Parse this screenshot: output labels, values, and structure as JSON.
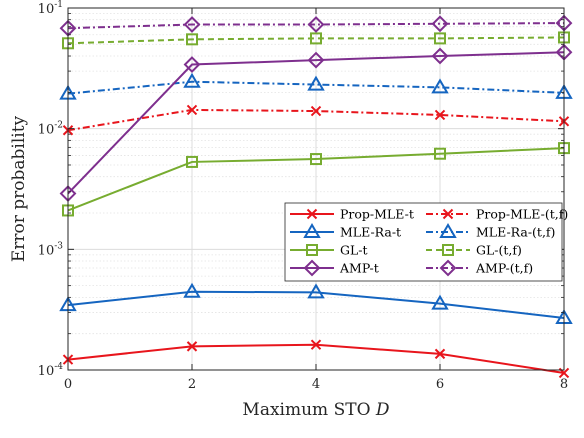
{
  "chart_data": {
    "type": "line",
    "title": "",
    "xlabel": "Maximum STO",
    "xlabel_var": "D",
    "ylabel": "Error probability",
    "x": [
      0,
      2,
      4,
      6,
      8
    ],
    "xlim": [
      0,
      8
    ],
    "ylim": [
      0.0001,
      0.1
    ],
    "yscale": "log",
    "grid": true,
    "legend_position": "center-right",
    "x_ticks": [
      "0",
      "2",
      "4",
      "6",
      "8"
    ],
    "y_ticks": [
      {
        "base": "10",
        "exp": "-4",
        "value": 0.0001
      },
      {
        "base": "10",
        "exp": "-3",
        "value": 0.001
      },
      {
        "base": "10",
        "exp": "-2",
        "value": 0.01
      },
      {
        "base": "10",
        "exp": "-1",
        "value": 0.1
      }
    ],
    "series": [
      {
        "name": "Prop-MLE-t",
        "color": "#e8151c",
        "dash": "solid",
        "marker": "x",
        "values": [
          0.000122,
          0.000157,
          0.000162,
          0.000136,
          9.45e-05
        ]
      },
      {
        "name": "Prop-MLE-(t,f)",
        "color": "#e8151c",
        "dash": "dashdot",
        "marker": "x",
        "values": [
          0.0097,
          0.0143,
          0.014,
          0.013,
          0.0115
        ]
      },
      {
        "name": "MLE-Ra-t",
        "color": "#1565c0",
        "dash": "solid",
        "marker": "triangle",
        "values": [
          0.000345,
          0.000445,
          0.00044,
          0.000355,
          0.00027
        ]
      },
      {
        "name": "MLE-Ra-(t,f)",
        "color": "#1565c0",
        "dash": "dashdot",
        "marker": "triangle",
        "values": [
          0.0195,
          0.0245,
          0.0232,
          0.022,
          0.0198
        ]
      },
      {
        "name": "GL-t",
        "color": "#77ac30",
        "dash": "solid",
        "marker": "square",
        "values": [
          0.0021,
          0.0053,
          0.0056,
          0.0062,
          0.0069
        ]
      },
      {
        "name": "GL-(t,f)",
        "color": "#77ac30",
        "dash": "dashed",
        "marker": "square",
        "values": [
          0.051,
          0.055,
          0.056,
          0.056,
          0.057
        ]
      },
      {
        "name": "AMP-t",
        "color": "#7e2f8e",
        "dash": "solid",
        "marker": "diamond",
        "values": [
          0.0029,
          0.034,
          0.037,
          0.04,
          0.043
        ]
      },
      {
        "name": "AMP-(t,f)",
        "color": "#7e2f8e",
        "dash": "dashdot",
        "marker": "diamond",
        "values": [
          0.068,
          0.073,
          0.073,
          0.074,
          0.075
        ]
      }
    ]
  }
}
